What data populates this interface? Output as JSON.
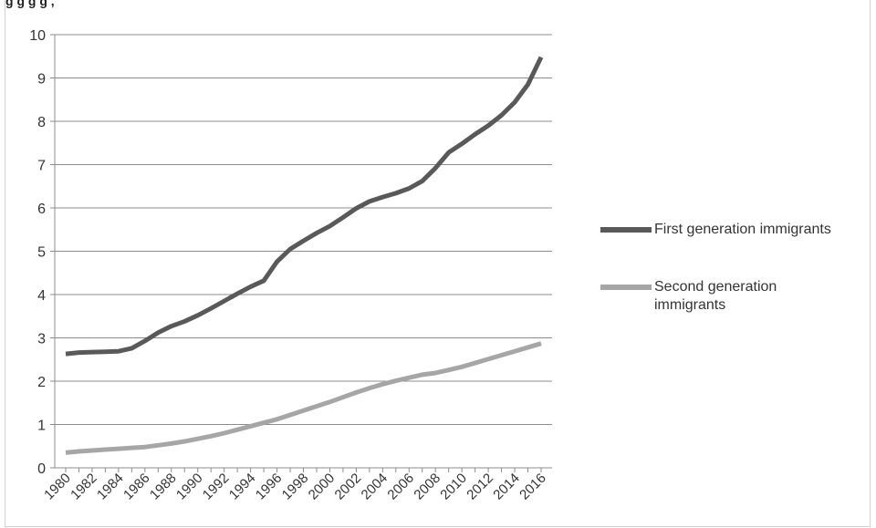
{
  "header": {
    "title_fragment": "g                                    g         g                  g      ,"
  },
  "chart_data": {
    "type": "line",
    "x": [
      1980,
      1981,
      1982,
      1983,
      1984,
      1985,
      1986,
      1987,
      1988,
      1989,
      1990,
      1991,
      1992,
      1993,
      1994,
      1995,
      1996,
      1997,
      1998,
      1999,
      2000,
      2001,
      2002,
      2003,
      2004,
      2005,
      2006,
      2007,
      2008,
      2009,
      2010,
      2011,
      2012,
      2013,
      2014,
      2015,
      2016
    ],
    "x_tick_labels": [
      "1980",
      "1982",
      "1984",
      "1986",
      "1988",
      "1990",
      "1992",
      "1994",
      "1996",
      "1998",
      "2000",
      "2002",
      "2004",
      "2006",
      "2008",
      "2010",
      "2012",
      "2014",
      "2016"
    ],
    "y_tick_labels": [
      "0",
      "1",
      "2",
      "3",
      "4",
      "5",
      "6",
      "7",
      "8",
      "9",
      "10"
    ],
    "ylim": [
      0,
      10
    ],
    "grid": true,
    "legend_position": "right",
    "series": [
      {
        "name": "First generation immigrants",
        "color": "#595959",
        "values": [
          2.63,
          2.66,
          2.67,
          2.68,
          2.69,
          2.76,
          2.93,
          3.12,
          3.27,
          3.38,
          3.52,
          3.68,
          3.85,
          4.02,
          4.18,
          4.32,
          4.76,
          5.05,
          5.24,
          5.42,
          5.58,
          5.78,
          5.99,
          6.15,
          6.25,
          6.34,
          6.45,
          6.62,
          6.92,
          7.28,
          7.48,
          7.7,
          7.9,
          8.14,
          8.44,
          8.85,
          9.48
        ]
      },
      {
        "name": "Second generation immigrants",
        "color": "#a6a6a6",
        "values": [
          0.35,
          0.38,
          0.4,
          0.42,
          0.44,
          0.46,
          0.48,
          0.52,
          0.56,
          0.61,
          0.67,
          0.73,
          0.8,
          0.88,
          0.96,
          1.04,
          1.12,
          1.22,
          1.32,
          1.42,
          1.52,
          1.63,
          1.74,
          1.84,
          1.93,
          2.01,
          2.08,
          2.15,
          2.19,
          2.26,
          2.33,
          2.42,
          2.51,
          2.6,
          2.69,
          2.78,
          2.87
        ]
      }
    ]
  }
}
